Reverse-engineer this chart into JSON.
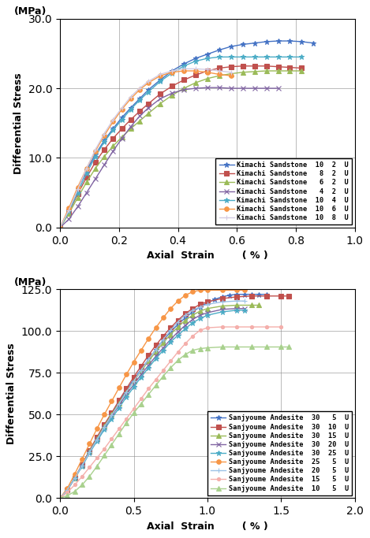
{
  "top_chart": {
    "xlim": [
      0.0,
      1.0
    ],
    "ylim": [
      0.0,
      30.0
    ],
    "xticks": [
      0.0,
      0.2,
      0.4,
      0.6,
      0.8,
      1.0
    ],
    "yticks": [
      0.0,
      10.0,
      20.0,
      30.0
    ],
    "xlabel": "Axial  Strain        ( % )",
    "ylabel": "Differential Stress",
    "ylabel2": "(MPa)",
    "series": [
      {
        "label": "Kimachi Sandstone  10  2  U",
        "color": "#4472C4",
        "marker": "*",
        "markersize": 5,
        "filled": true,
        "x": [
          0.0,
          0.03,
          0.06,
          0.09,
          0.12,
          0.15,
          0.18,
          0.21,
          0.24,
          0.27,
          0.3,
          0.34,
          0.38,
          0.42,
          0.46,
          0.5,
          0.54,
          0.58,
          0.62,
          0.66,
          0.7,
          0.74,
          0.78,
          0.82,
          0.86
        ],
        "y": [
          0.0,
          2.5,
          5.5,
          8.2,
          10.5,
          12.5,
          14.2,
          15.8,
          17.2,
          18.5,
          19.8,
          21.2,
          22.5,
          23.5,
          24.3,
          24.9,
          25.5,
          26.0,
          26.3,
          26.5,
          26.7,
          26.8,
          26.8,
          26.7,
          26.5
        ]
      },
      {
        "label": "Kimachi Sandstone   8  2  U",
        "color": "#C0504D",
        "marker": "s",
        "markersize": 4,
        "filled": true,
        "x": [
          0.0,
          0.03,
          0.06,
          0.09,
          0.12,
          0.15,
          0.18,
          0.21,
          0.24,
          0.27,
          0.3,
          0.34,
          0.38,
          0.42,
          0.46,
          0.5,
          0.54,
          0.58,
          0.62,
          0.66,
          0.7,
          0.74,
          0.78,
          0.82
        ],
        "y": [
          0.0,
          2.2,
          4.8,
          7.2,
          9.4,
          11.2,
          12.8,
          14.2,
          15.5,
          16.7,
          17.8,
          19.2,
          20.3,
          21.2,
          21.9,
          22.5,
          22.9,
          23.1,
          23.2,
          23.2,
          23.2,
          23.1,
          23.0,
          22.9
        ]
      },
      {
        "label": "Kimachi Sandstone   6  2  U",
        "color": "#9BBB59",
        "marker": "^",
        "markersize": 4,
        "filled": true,
        "x": [
          0.0,
          0.03,
          0.06,
          0.09,
          0.12,
          0.15,
          0.18,
          0.21,
          0.24,
          0.27,
          0.3,
          0.34,
          0.38,
          0.42,
          0.46,
          0.5,
          0.54,
          0.58,
          0.62,
          0.66,
          0.7,
          0.74,
          0.78,
          0.82
        ],
        "y": [
          0.0,
          2.0,
          4.3,
          6.5,
          8.5,
          10.2,
          11.7,
          13.0,
          14.2,
          15.3,
          16.4,
          17.8,
          19.0,
          20.0,
          20.8,
          21.4,
          21.8,
          22.1,
          22.3,
          22.4,
          22.5,
          22.5,
          22.5,
          22.5
        ]
      },
      {
        "label": "Kimachi Sandstone   4  2  U",
        "color": "#8064A2",
        "marker": "x",
        "markersize": 5,
        "filled": false,
        "x": [
          0.0,
          0.03,
          0.06,
          0.09,
          0.12,
          0.15,
          0.18,
          0.21,
          0.24,
          0.27,
          0.3,
          0.34,
          0.38,
          0.42,
          0.46,
          0.5,
          0.54,
          0.58,
          0.62,
          0.66,
          0.7,
          0.74
        ],
        "y": [
          0.0,
          1.2,
          3.0,
          5.0,
          7.0,
          9.0,
          11.0,
          12.8,
          14.5,
          16.0,
          17.2,
          18.5,
          19.3,
          19.8,
          20.0,
          20.1,
          20.1,
          20.0,
          20.0,
          20.0,
          20.0,
          20.0
        ]
      },
      {
        "label": "Kimachi Sandstone  10  4  U",
        "color": "#4BACC6",
        "marker": "*",
        "markersize": 5,
        "filled": true,
        "x": [
          0.0,
          0.03,
          0.06,
          0.09,
          0.12,
          0.15,
          0.18,
          0.21,
          0.24,
          0.27,
          0.3,
          0.34,
          0.38,
          0.42,
          0.46,
          0.5,
          0.54,
          0.58,
          0.62,
          0.66,
          0.7,
          0.74,
          0.78,
          0.82
        ],
        "y": [
          0.0,
          2.3,
          5.0,
          7.8,
          10.2,
          12.3,
          14.0,
          15.5,
          17.0,
          18.3,
          19.5,
          21.0,
          22.2,
          23.2,
          23.9,
          24.3,
          24.5,
          24.5,
          24.5,
          24.5,
          24.5,
          24.5,
          24.5,
          24.5
        ]
      },
      {
        "label": "Kimachi Sandstone  10  6  U",
        "color": "#F79646",
        "marker": "o",
        "markersize": 4,
        "filled": true,
        "x": [
          0.0,
          0.03,
          0.06,
          0.09,
          0.12,
          0.15,
          0.18,
          0.21,
          0.24,
          0.27,
          0.3,
          0.34,
          0.38,
          0.42,
          0.46,
          0.5,
          0.54,
          0.58
        ],
        "y": [
          0.0,
          2.8,
          5.8,
          8.5,
          11.0,
          13.2,
          15.2,
          17.0,
          18.5,
          19.8,
          20.8,
          21.8,
          22.3,
          22.5,
          22.5,
          22.3,
          22.0,
          21.8
        ]
      },
      {
        "label": "Kimachi Sandstone  10  8  U",
        "color": "#D3CCE3",
        "marker": "+",
        "markersize": 5,
        "filled": false,
        "x": [
          0.0,
          0.03,
          0.06,
          0.09,
          0.12,
          0.15,
          0.18,
          0.21,
          0.24,
          0.27,
          0.3,
          0.34,
          0.38,
          0.42,
          0.46,
          0.5,
          0.54,
          0.58
        ],
        "y": [
          0.0,
          2.5,
          5.5,
          8.5,
          11.2,
          13.5,
          15.5,
          17.2,
          18.8,
          20.0,
          21.0,
          22.0,
          22.5,
          22.8,
          22.8,
          22.7,
          22.5,
          22.3
        ]
      }
    ]
  },
  "bottom_chart": {
    "xlim": [
      0.0,
      2.0
    ],
    "ylim": [
      0.0,
      125.0
    ],
    "xticks": [
      0.0,
      0.5,
      1.0,
      1.5,
      2.0
    ],
    "yticks": [
      0.0,
      25.0,
      50.0,
      75.0,
      100.0,
      125.0
    ],
    "xlabel": "Axial  Strain        ( % )",
    "ylabel": "Differential Stress",
    "ylabel2": "(MPa)",
    "series": [
      {
        "label": "Sanjyoume Andesite  30   5  U",
        "color": "#4472C4",
        "marker": "*",
        "markersize": 5,
        "filled": true,
        "x": [
          0.0,
          0.05,
          0.1,
          0.15,
          0.2,
          0.25,
          0.3,
          0.35,
          0.4,
          0.45,
          0.5,
          0.55,
          0.6,
          0.65,
          0.7,
          0.75,
          0.8,
          0.85,
          0.9,
          0.95,
          1.0,
          1.05,
          1.1,
          1.15,
          1.2,
          1.25,
          1.3,
          1.35,
          1.4
        ],
        "y": [
          0.0,
          5.0,
          12.0,
          20.0,
          28.5,
          36.0,
          43.5,
          50.5,
          57.5,
          64.5,
          71.0,
          77.0,
          83.0,
          89.0,
          94.5,
          99.5,
          104.0,
          108.0,
          111.5,
          114.5,
          117.0,
          119.0,
          120.5,
          121.5,
          122.0,
          122.0,
          122.0,
          122.0,
          122.0
        ]
      },
      {
        "label": "Sanjyoume Andesite  30  10  U",
        "color": "#C0504D",
        "marker": "s",
        "markersize": 4,
        "filled": true,
        "x": [
          0.0,
          0.05,
          0.1,
          0.15,
          0.2,
          0.25,
          0.3,
          0.35,
          0.4,
          0.45,
          0.5,
          0.55,
          0.6,
          0.65,
          0.7,
          0.75,
          0.8,
          0.85,
          0.9,
          0.95,
          1.0,
          1.1,
          1.2,
          1.3,
          1.4,
          1.5,
          1.55
        ],
        "y": [
          0.0,
          5.0,
          12.0,
          20.0,
          28.5,
          36.5,
          44.0,
          51.0,
          58.5,
          65.5,
          72.5,
          79.0,
          85.5,
          91.5,
          97.0,
          102.0,
          106.5,
          110.5,
          113.5,
          116.0,
          117.5,
          119.5,
          120.5,
          121.0,
          121.0,
          121.0,
          121.0
        ]
      },
      {
        "label": "Sanjyoume Andesite  30  15  U",
        "color": "#9BBB59",
        "marker": "^",
        "markersize": 4,
        "filled": true,
        "x": [
          0.0,
          0.05,
          0.1,
          0.15,
          0.2,
          0.25,
          0.3,
          0.35,
          0.4,
          0.45,
          0.5,
          0.55,
          0.6,
          0.65,
          0.7,
          0.75,
          0.8,
          0.85,
          0.9,
          0.95,
          1.0,
          1.1,
          1.2,
          1.3,
          1.35
        ],
        "y": [
          0.0,
          5.0,
          12.0,
          19.5,
          28.0,
          35.5,
          43.0,
          50.0,
          57.0,
          63.5,
          70.0,
          76.0,
          82.0,
          87.5,
          93.0,
          98.0,
          102.5,
          106.5,
          109.5,
          112.0,
          113.5,
          115.0,
          115.5,
          115.5,
          115.5
        ]
      },
      {
        "label": "Sanjyoume Andesite  30  20  U",
        "color": "#8064A2",
        "marker": "x",
        "markersize": 5,
        "filled": false,
        "x": [
          0.0,
          0.05,
          0.1,
          0.15,
          0.2,
          0.25,
          0.3,
          0.35,
          0.4,
          0.45,
          0.5,
          0.55,
          0.6,
          0.65,
          0.7,
          0.75,
          0.8,
          0.85,
          0.9,
          0.95,
          1.0,
          1.1,
          1.2,
          1.25
        ],
        "y": [
          0.0,
          5.0,
          12.0,
          19.5,
          27.5,
          35.0,
          42.0,
          49.0,
          55.5,
          62.0,
          68.0,
          74.0,
          79.5,
          85.0,
          90.0,
          95.0,
          99.5,
          103.5,
          107.0,
          109.5,
          111.0,
          113.0,
          113.5,
          113.5
        ]
      },
      {
        "label": "Sanjyoume Andesite  30  25  U",
        "color": "#4BACC6",
        "marker": "*",
        "markersize": 5,
        "filled": true,
        "x": [
          0.0,
          0.05,
          0.1,
          0.15,
          0.2,
          0.25,
          0.3,
          0.35,
          0.4,
          0.45,
          0.5,
          0.55,
          0.6,
          0.65,
          0.7,
          0.75,
          0.8,
          0.85,
          0.9,
          0.95,
          1.0,
          1.1,
          1.2,
          1.25
        ],
        "y": [
          0.0,
          5.0,
          12.0,
          19.0,
          27.0,
          34.0,
          41.0,
          47.5,
          54.0,
          60.5,
          66.5,
          72.5,
          78.0,
          83.5,
          88.5,
          93.5,
          97.5,
          101.5,
          105.0,
          107.5,
          109.5,
          111.5,
          112.5,
          112.5
        ]
      },
      {
        "label": "Sanjyoume Andesite  25   5  U",
        "color": "#F79646",
        "marker": "o",
        "markersize": 4,
        "filled": true,
        "x": [
          0.0,
          0.05,
          0.1,
          0.15,
          0.2,
          0.25,
          0.3,
          0.35,
          0.4,
          0.45,
          0.5,
          0.55,
          0.6,
          0.65,
          0.7,
          0.75,
          0.8,
          0.85,
          0.9,
          0.95,
          1.0,
          1.1,
          1.2,
          1.25
        ],
        "y": [
          0.0,
          6.0,
          14.5,
          23.5,
          32.5,
          41.5,
          50.0,
          58.0,
          66.0,
          74.0,
          81.5,
          88.5,
          95.5,
          102.0,
          108.0,
          113.5,
          118.0,
          121.5,
          123.5,
          124.5,
          124.5,
          124.5,
          124.5,
          124.5
        ]
      },
      {
        "label": "Sanjyoume Andesite  20   5  U",
        "color": "#9DC3E6",
        "marker": "+",
        "markersize": 5,
        "filled": false,
        "x": [
          0.0,
          0.05,
          0.1,
          0.15,
          0.2,
          0.25,
          0.3,
          0.35,
          0.4,
          0.45,
          0.5,
          0.55,
          0.6,
          0.65,
          0.7,
          0.75,
          0.8,
          0.85,
          0.9,
          0.95,
          1.0,
          1.1,
          1.2,
          1.25
        ],
        "y": [
          0.0,
          5.0,
          12.0,
          19.5,
          27.5,
          35.0,
          42.5,
          49.5,
          56.5,
          63.5,
          70.0,
          76.5,
          83.0,
          89.0,
          95.0,
          100.5,
          105.5,
          109.5,
          112.5,
          114.5,
          116.0,
          117.5,
          118.0,
          118.0
        ]
      },
      {
        "label": "Sanjyoume Andesite  15   5  U",
        "color": "#F4AFAB",
        "marker": "o",
        "markersize": 3,
        "filled": true,
        "x": [
          0.0,
          0.05,
          0.1,
          0.15,
          0.2,
          0.25,
          0.3,
          0.35,
          0.4,
          0.45,
          0.5,
          0.55,
          0.6,
          0.65,
          0.7,
          0.75,
          0.8,
          0.85,
          0.9,
          0.95,
          1.0,
          1.1,
          1.2,
          1.3,
          1.4,
          1.5
        ],
        "y": [
          0.0,
          3.5,
          8.0,
          13.0,
          18.5,
          24.0,
          29.5,
          35.5,
          41.5,
          47.5,
          53.5,
          59.5,
          65.5,
          71.0,
          76.5,
          82.0,
          87.5,
          92.5,
          97.0,
          100.5,
          102.0,
          102.5,
          102.5,
          102.5,
          102.5,
          102.5
        ]
      },
      {
        "label": "Sanjyoume Andesite  10   5  U",
        "color": "#A9D18E",
        "marker": "^",
        "markersize": 4,
        "filled": true,
        "linestyle": "-",
        "x": [
          0.0,
          0.05,
          0.1,
          0.15,
          0.2,
          0.25,
          0.3,
          0.35,
          0.4,
          0.45,
          0.5,
          0.55,
          0.6,
          0.65,
          0.7,
          0.75,
          0.8,
          0.85,
          0.9,
          0.95,
          1.0,
          1.1,
          1.2,
          1.3,
          1.4,
          1.5,
          1.55
        ],
        "y": [
          0.0,
          1.5,
          4.0,
          8.0,
          13.0,
          19.0,
          25.5,
          32.0,
          38.5,
          45.0,
          51.0,
          56.5,
          62.0,
          67.5,
          73.0,
          78.0,
          82.5,
          86.0,
          88.5,
          89.5,
          90.0,
          90.5,
          90.5,
          90.5,
          90.5,
          90.5,
          90.5
        ]
      }
    ]
  }
}
